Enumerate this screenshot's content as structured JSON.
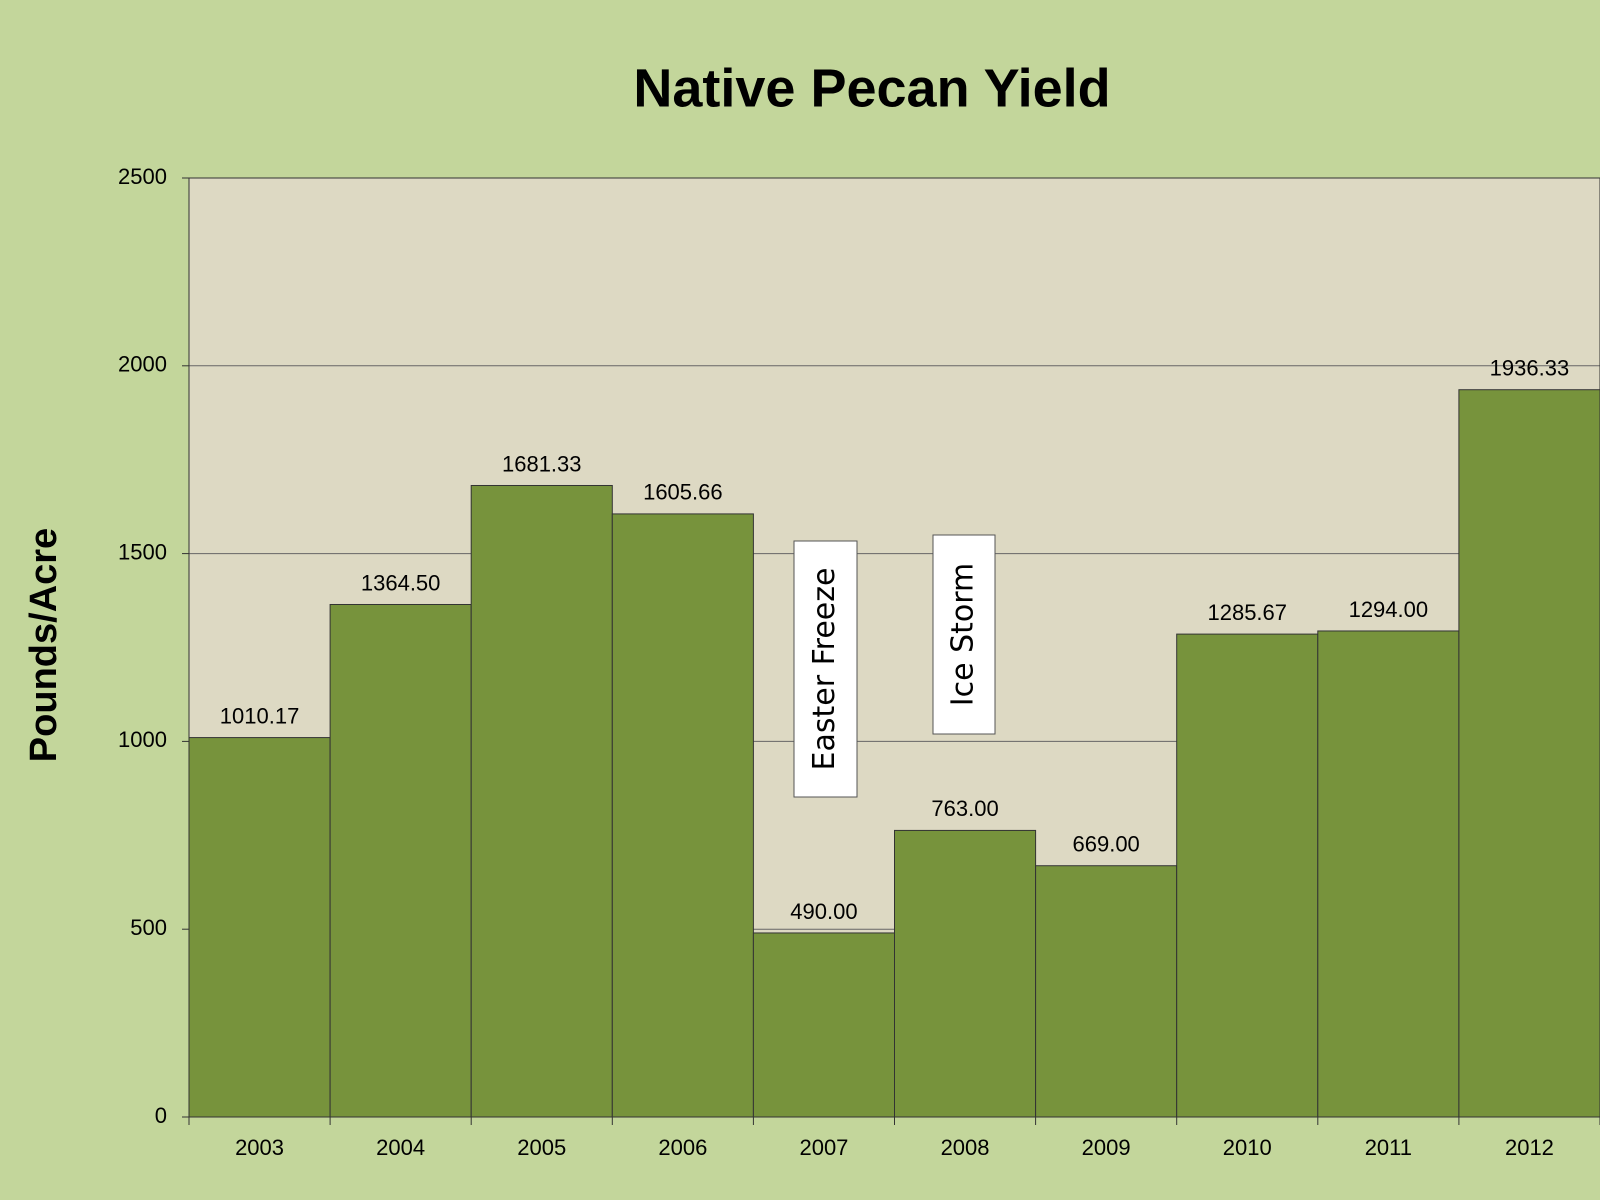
{
  "chart_data": {
    "type": "bar",
    "title": "Native Pecan Yield",
    "y_label": "Pounds/Acre",
    "categories": [
      "2003",
      "2004",
      "2005",
      "2006",
      "2007",
      "2008",
      "2009",
      "2010",
      "2011",
      "2012"
    ],
    "values": [
      1010.17,
      1364.5,
      1681.33,
      1605.66,
      490,
      763,
      669,
      1285.67,
      1294,
      1936.33
    ],
    "value_labels": [
      "1010.17",
      "1364.50",
      "1681.33",
      "1605.66",
      "490.00",
      "763.00",
      "669.00",
      "1285.67",
      "1294.00",
      "1936.33"
    ],
    "color": "#77933c",
    "ylim": [
      0,
      2500
    ],
    "yticks": [
      0,
      500,
      1000,
      1500,
      2000,
      2500
    ],
    "grid": true,
    "annotations": [
      "Easter Freeze",
      "Ice Storm"
    ]
  }
}
